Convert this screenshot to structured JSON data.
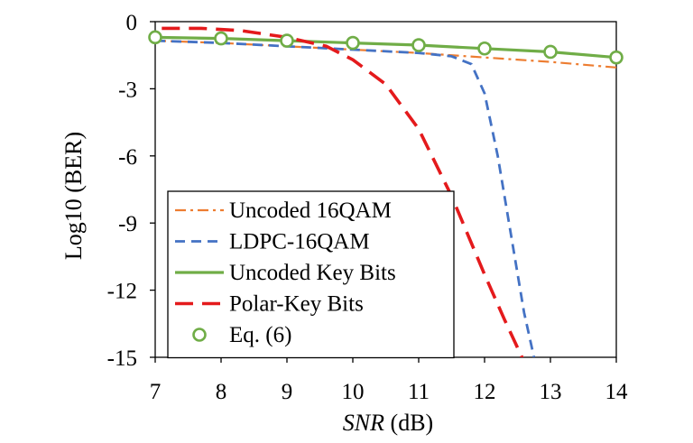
{
  "chart_data": {
    "type": "line",
    "title": "",
    "xlabel": {
      "italic": "SNR",
      "rest": " (dB)"
    },
    "ylabel": "Log10 (BER)",
    "xlim": [
      7,
      14
    ],
    "ylim": [
      -15,
      0
    ],
    "xticks": [
      7,
      8,
      9,
      10,
      11,
      12,
      13,
      14
    ],
    "yticks": [
      0,
      -3,
      -6,
      -9,
      -12,
      -15
    ],
    "ytick_labels": [
      "0",
      "-3",
      "-6",
      "-9",
      "-12",
      "-15"
    ],
    "legend_position": "bottom-left",
    "series": [
      {
        "name": "Uncoded 16QAM",
        "color": "#ED7D31",
        "style": "dashdot",
        "marker": "none",
        "x": [
          7,
          8,
          9,
          10,
          11,
          12,
          13,
          14
        ],
        "y": [
          -0.85,
          -0.95,
          -1.1,
          -1.25,
          -1.4,
          -1.6,
          -1.8,
          -2.05
        ]
      },
      {
        "name": "LDPC-16QAM",
        "color": "#4472C4",
        "style": "dash",
        "marker": "none",
        "x": [
          7,
          8,
          9,
          10,
          11,
          11.5,
          11.8,
          12.0,
          12.2,
          12.4,
          12.6,
          12.75
        ],
        "y": [
          -0.85,
          -0.95,
          -1.1,
          -1.25,
          -1.4,
          -1.55,
          -1.9,
          -3.2,
          -6.0,
          -9.5,
          -13.0,
          -15.0
        ]
      },
      {
        "name": "Uncoded Key Bits",
        "color": "#70AD47",
        "style": "solid",
        "marker": "none",
        "x": [
          7,
          8,
          9,
          10,
          11,
          12,
          13,
          14
        ],
        "y": [
          -0.7,
          -0.75,
          -0.85,
          -0.95,
          -1.05,
          -1.2,
          -1.35,
          -1.6
        ]
      },
      {
        "name": "Polar-Key Bits",
        "color": "#E41A1C",
        "style": "dash",
        "marker": "none",
        "x": [
          7.1,
          7.7,
          8.3,
          9.0,
          9.6,
          10.0,
          10.5,
          11.0,
          11.5,
          12.0,
          12.3,
          12.6
        ],
        "y": [
          -0.3,
          -0.3,
          -0.4,
          -0.7,
          -1.1,
          -1.7,
          -2.8,
          -4.8,
          -7.8,
          -11.3,
          -13.3,
          -15.2
        ]
      },
      {
        "name": "Eq. (6)",
        "color": "#70AD47",
        "style": "none",
        "marker": "circle",
        "x": [
          7,
          8,
          9,
          10,
          11,
          12,
          13,
          14
        ],
        "y": [
          -0.7,
          -0.75,
          -0.85,
          -0.95,
          -1.05,
          -1.2,
          -1.35,
          -1.6
        ]
      }
    ]
  }
}
